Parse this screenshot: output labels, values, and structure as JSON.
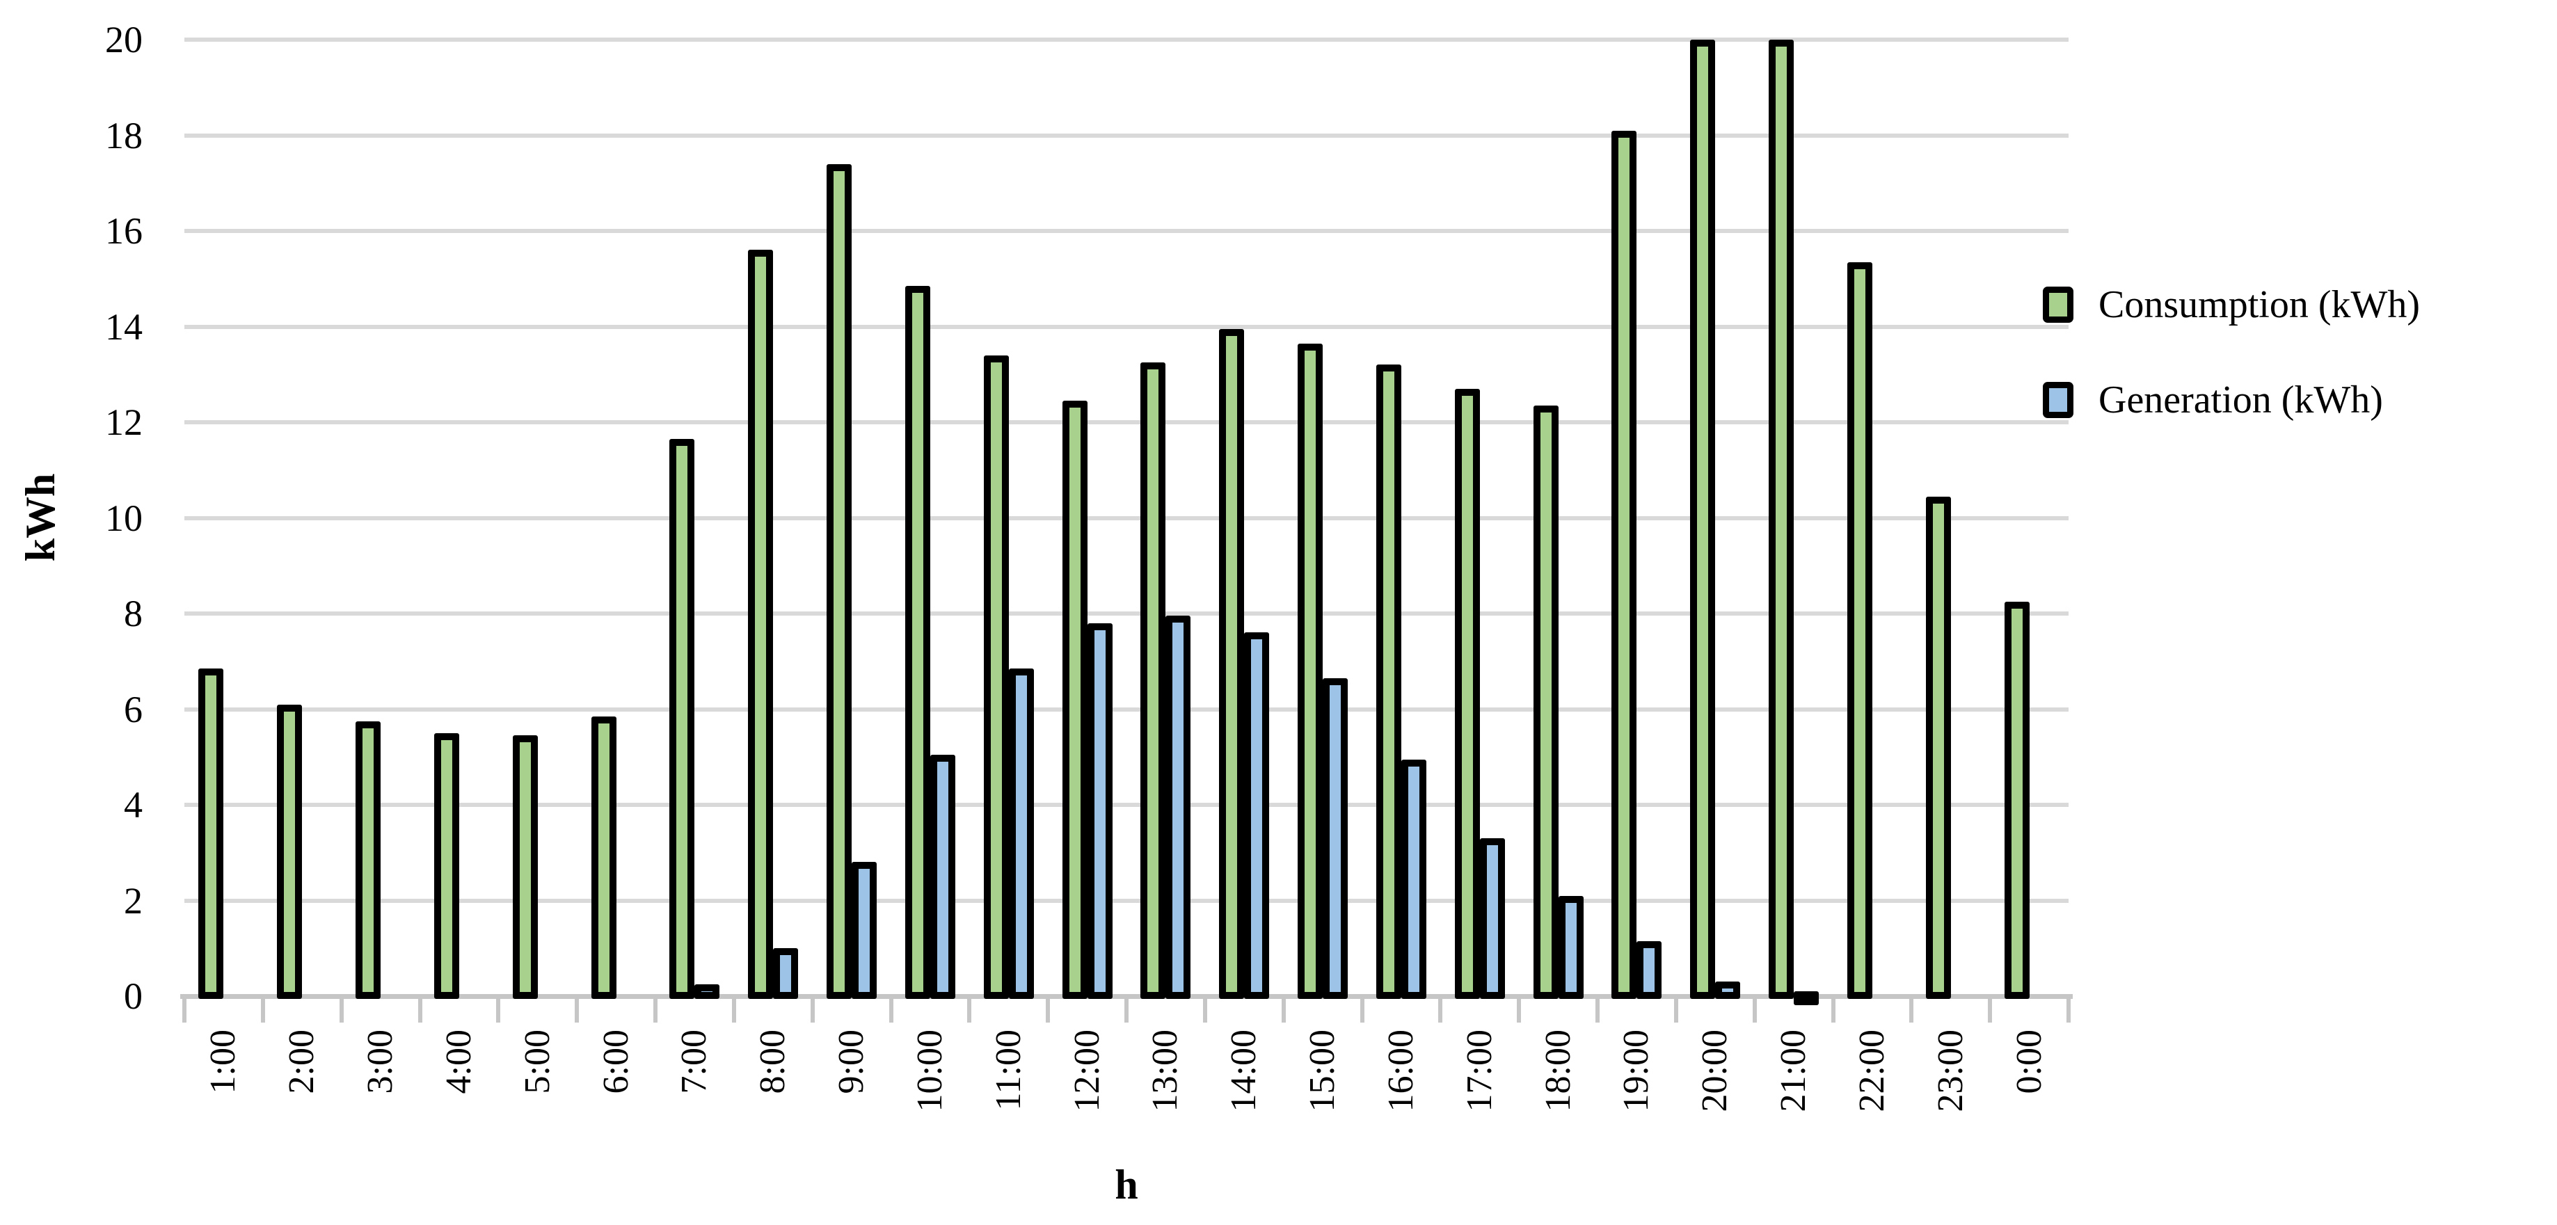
{
  "chart_data": {
    "type": "bar",
    "title": "",
    "xlabel": "h",
    "ylabel": "kWh",
    "ylim": [
      0,
      20
    ],
    "ytick_step": 2,
    "y_tick_labels": [
      "0",
      "2",
      "4",
      "6",
      "8",
      "10",
      "12",
      "14",
      "16",
      "18",
      "20"
    ],
    "grid": true,
    "legend_position": "right",
    "categories": [
      "1:00",
      "2:00",
      "3:00",
      "4:00",
      "5:00",
      "6:00",
      "7:00",
      "8:00",
      "9:00",
      "10:00",
      "11:00",
      "12:00",
      "13:00",
      "14:00",
      "15:00",
      "16:00",
      "17:00",
      "18:00",
      "19:00",
      "20:00",
      "21:00",
      "22:00",
      "23:00",
      "0:00"
    ],
    "series": [
      {
        "name": "Consumption (kWh)",
        "color": "#A9D18E",
        "values": [
          6.85,
          6.1,
          5.75,
          5.5,
          5.45,
          5.85,
          11.65,
          15.6,
          17.4,
          14.85,
          13.4,
          12.45,
          13.25,
          13.95,
          13.65,
          13.2,
          12.7,
          12.35,
          18.1,
          20,
          20,
          15.35,
          10.45,
          8.25
        ]
      },
      {
        "name": "Generation (kWh)",
        "color": "#9DC3E6",
        "values": [
          0,
          0,
          0,
          0,
          0,
          0,
          0.25,
          1.0,
          2.8,
          5.05,
          6.85,
          7.8,
          7.95,
          7.6,
          6.65,
          4.95,
          3.3,
          2.1,
          1.15,
          0.3,
          0.1,
          0,
          0,
          0
        ]
      }
    ],
    "styles": {
      "grid_color": "#d9d9d9",
      "axis_color": "#c6c6c6",
      "bar_border_color": "#000000",
      "text_color": "#000000"
    }
  }
}
